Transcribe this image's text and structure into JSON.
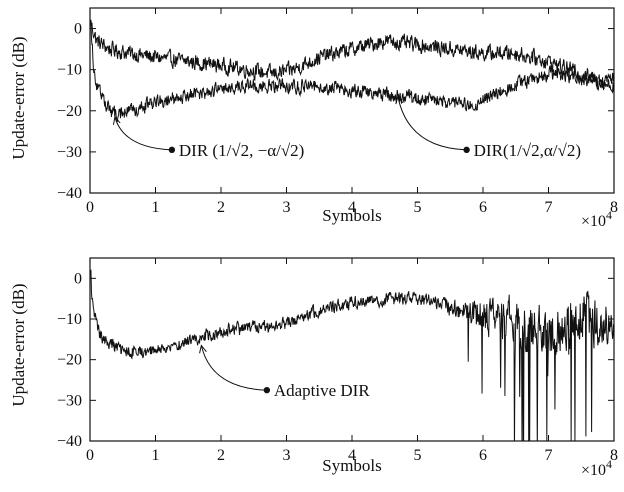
{
  "chart_data": [
    {
      "type": "line",
      "xlabel": "Symbols",
      "ylabel": "Update-error (dB)",
      "x_multiplier": "×10",
      "x_multiplier_exp": "4",
      "xlim": [
        0,
        8
      ],
      "ylim": [
        -40,
        5
      ],
      "xticks": [
        0,
        1,
        2,
        3,
        4,
        5,
        6,
        7,
        8
      ],
      "yticks": [
        0,
        -10,
        -20,
        -30,
        -40
      ],
      "grid": false,
      "series": [
        {
          "points": [
            [
              0,
              2
            ],
            [
              0.1,
              -3
            ],
            [
              0.3,
              -5
            ],
            [
              0.6,
              -6
            ],
            [
              1,
              -7
            ],
            [
              1.5,
              -8
            ],
            [
              2,
              -9
            ],
            [
              2.4,
              -10
            ],
            [
              2.8,
              -11
            ],
            [
              3.1,
              -10
            ],
            [
              3.5,
              -7
            ],
            [
              4,
              -5
            ],
            [
              4.5,
              -3
            ],
            [
              5,
              -4
            ],
            [
              5.5,
              -5
            ],
            [
              6,
              -6
            ],
            [
              6.5,
              -6
            ],
            [
              7,
              -8
            ],
            [
              7.5,
              -11
            ],
            [
              7.8,
              -13
            ],
            [
              8,
              -14
            ]
          ],
          "noise": 2.6
        },
        {
          "points": [
            [
              0,
              2
            ],
            [
              0.05,
              -8
            ],
            [
              0.1,
              -14
            ],
            [
              0.2,
              -17
            ],
            [
              0.3,
              -20
            ],
            [
              0.45,
              -21
            ],
            [
              0.6,
              -20
            ],
            [
              1,
              -18
            ],
            [
              1.5,
              -16
            ],
            [
              2,
              -15
            ],
            [
              2.5,
              -14
            ],
            [
              3,
              -14
            ],
            [
              3.5,
              -14
            ],
            [
              4,
              -15
            ],
            [
              4.5,
              -16
            ],
            [
              5,
              -17
            ],
            [
              5.5,
              -18
            ],
            [
              5.8,
              -19
            ],
            [
              6.2,
              -16
            ],
            [
              6.6,
              -13
            ],
            [
              7,
              -11
            ],
            [
              7.5,
              -12
            ],
            [
              7.8,
              -13
            ],
            [
              8,
              -12
            ]
          ],
          "noise": 2.4
        }
      ],
      "annotations": [
        {
          "text_main": "DIR ",
          "text_expr": "(1/√2, −α/√2)",
          "dot": [
            1.25,
            -29.5
          ],
          "arrow_to": [
            0.38,
            -21.5
          ]
        },
        {
          "text_main": "DIR",
          "text_expr": "(1/√2,α/√2)",
          "dot": [
            5.75,
            -29.5
          ],
          "arrow_to": [
            4.7,
            -16.5
          ]
        }
      ]
    },
    {
      "type": "line",
      "xlabel": "Symbols",
      "ylabel": "Update-error (dB)",
      "x_multiplier": "×10",
      "x_multiplier_exp": "4",
      "xlim": [
        0,
        8
      ],
      "ylim": [
        -40,
        5
      ],
      "xticks": [
        0,
        1,
        2,
        3,
        4,
        5,
        6,
        7,
        8
      ],
      "yticks": [
        0,
        -10,
        -20,
        -30,
        -40
      ],
      "grid": false,
      "series": [
        {
          "points": [
            [
              0,
              2
            ],
            [
              0.05,
              -8
            ],
            [
              0.15,
              -14
            ],
            [
              0.3,
              -16
            ],
            [
              0.5,
              -18
            ],
            [
              0.8,
              -18
            ],
            [
              1.2,
              -17
            ],
            [
              1.6,
              -15
            ],
            [
              2,
              -13
            ],
            [
              2.5,
              -12
            ],
            [
              3,
              -11
            ],
            [
              3.3,
              -9
            ],
            [
              3.7,
              -7
            ],
            [
              4,
              -6
            ],
            [
              4.5,
              -5
            ],
            [
              5,
              -5
            ],
            [
              5.3,
              -6
            ],
            [
              5.6,
              -8
            ],
            [
              6,
              -9
            ],
            [
              6.5,
              -11
            ],
            [
              7,
              -14
            ],
            [
              7.5,
              -9
            ],
            [
              8,
              -13
            ]
          ],
          "noise": 2.2
        }
      ],
      "annotations": [
        {
          "text_main": "Adaptive DIR",
          "text_expr": "",
          "dot": [
            2.7,
            -27.5
          ],
          "arrow_to": [
            1.7,
            -16.5
          ]
        }
      ]
    }
  ]
}
